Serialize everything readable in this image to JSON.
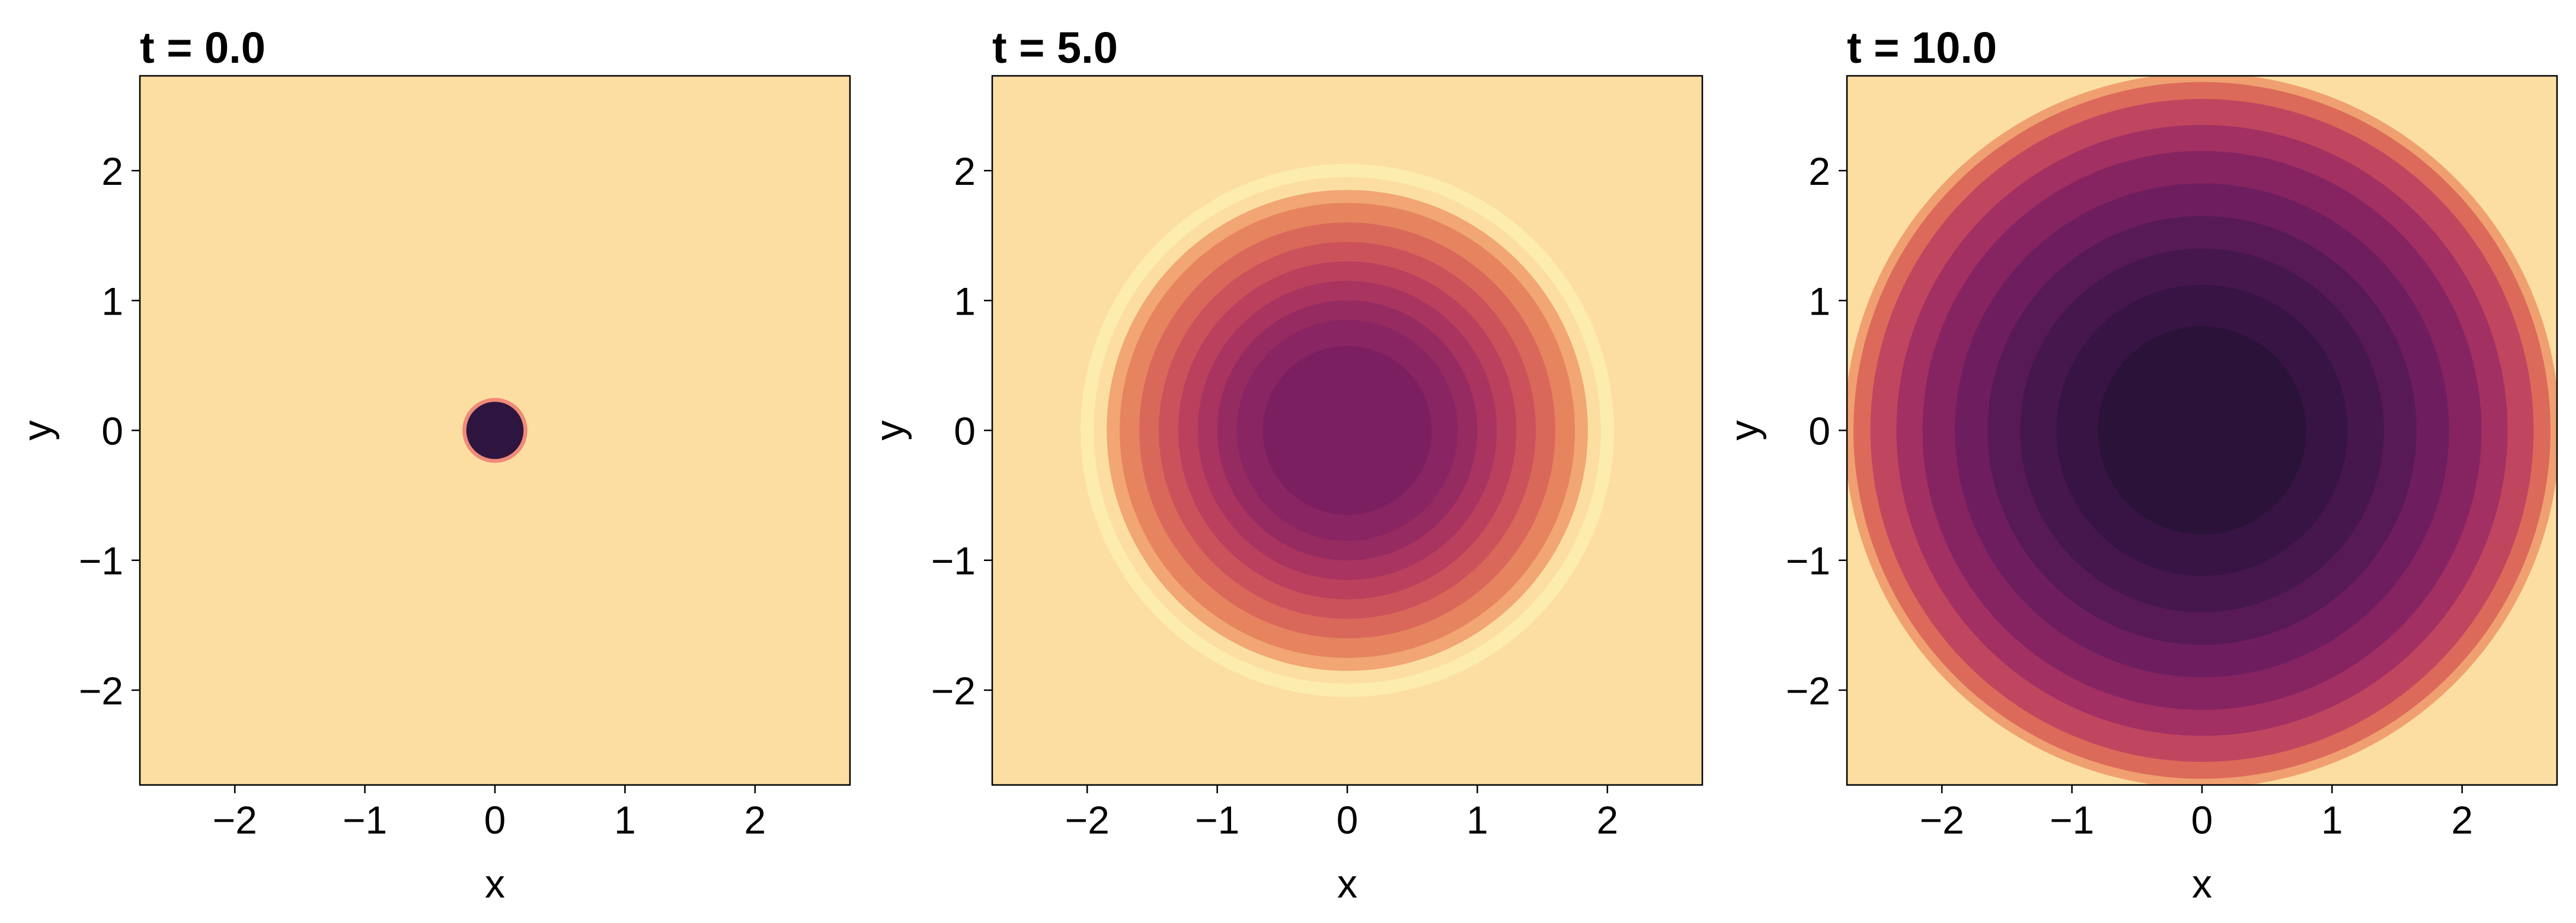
{
  "chart_data": [
    {
      "type": "heatmap",
      "title": "t = 0.0",
      "xlabel": "x",
      "ylabel": "y",
      "xlim": [
        -2.73,
        2.73
      ],
      "ylim": [
        -2.73,
        2.73
      ],
      "xticks": [
        {
          "value": -2,
          "label": "−2"
        },
        {
          "value": -1,
          "label": "−1"
        },
        0,
        1,
        2
      ],
      "yticks": [
        {
          "value": -2,
          "label": "−2"
        },
        {
          "value": -1,
          "label": "−1"
        },
        0,
        1,
        2
      ],
      "background": "#fcdea3",
      "circles": [
        {
          "r": 0.25,
          "color": "#f08a78"
        },
        {
          "r": 0.22,
          "color": "#2d1540"
        }
      ]
    },
    {
      "type": "heatmap",
      "title": "t = 5.0",
      "xlabel": "x",
      "ylabel": "y",
      "xlim": [
        -2.73,
        2.73
      ],
      "ylim": [
        -2.73,
        2.73
      ],
      "xticks": [
        {
          "value": -2,
          "label": "−2"
        },
        {
          "value": -1,
          "label": "−1"
        },
        0,
        1,
        2
      ],
      "yticks": [
        {
          "value": -2,
          "label": "−2"
        },
        {
          "value": -1,
          "label": "−1"
        },
        0,
        1,
        2
      ],
      "background": "#fcdea3",
      "circles": [
        {
          "r": 2.05,
          "color": "#fcedae"
        },
        {
          "r": 1.95,
          "color": "#fcdea3"
        },
        {
          "r": 1.85,
          "color": "#f1a673"
        },
        {
          "r": 1.75,
          "color": "#e6845f"
        },
        {
          "r": 1.6,
          "color": "#da685a"
        },
        {
          "r": 1.45,
          "color": "#cb525a"
        },
        {
          "r": 1.3,
          "color": "#ba405d"
        },
        {
          "r": 1.15,
          "color": "#a8345f"
        },
        {
          "r": 1.0,
          "color": "#962b61"
        },
        {
          "r": 0.85,
          "color": "#892562"
        },
        {
          "r": 0.65,
          "color": "#7c1f60"
        }
      ]
    },
    {
      "type": "heatmap",
      "title": "t = 10.0",
      "xlabel": "x",
      "ylabel": "y",
      "xlim": [
        -2.73,
        2.73
      ],
      "ylim": [
        -2.73,
        2.73
      ],
      "xticks": [
        {
          "value": -2,
          "label": "−2"
        },
        {
          "value": -1,
          "label": "−1"
        },
        0,
        1,
        2
      ],
      "yticks": [
        {
          "value": -2,
          "label": "−2"
        },
        {
          "value": -1,
          "label": "−1"
        },
        0,
        1,
        2
      ],
      "background": "#fcdea3",
      "circles": [
        {
          "r": 2.75,
          "color": "#f0a070"
        },
        {
          "r": 2.68,
          "color": "#dc6a5a"
        },
        {
          "r": 2.55,
          "color": "#c04660"
        },
        {
          "r": 2.35,
          "color": "#a23062"
        },
        {
          "r": 2.15,
          "color": "#862462"
        },
        {
          "r": 1.9,
          "color": "#6e1e5e"
        },
        {
          "r": 1.65,
          "color": "#581a57"
        },
        {
          "r": 1.4,
          "color": "#46174d"
        },
        {
          "r": 1.12,
          "color": "#371443"
        },
        {
          "r": 0.8,
          "color": "#2a1238"
        }
      ]
    }
  ]
}
